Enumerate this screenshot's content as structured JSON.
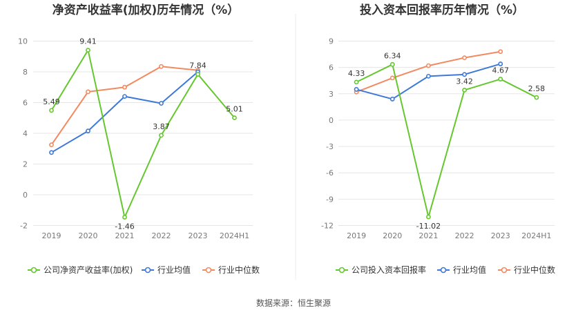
{
  "colors": {
    "company": "#64c72e",
    "average": "#3d78d8",
    "median": "#f2895f",
    "grid": "#e6e6e6",
    "divider": "#eeeeee"
  },
  "source_text": "数据来源：恒生聚源",
  "chart_data": [
    {
      "type": "line",
      "title": "净资产收益率(加权)历年情况（%）",
      "categories": [
        "2019",
        "2020",
        "2021",
        "2022",
        "2023",
        "2024H1"
      ],
      "ylim": [
        -2,
        10
      ],
      "yticks": [
        "-2",
        "0",
        "2",
        "4",
        "6",
        "8",
        "10"
      ],
      "grid": true,
      "legend_position": "bottom",
      "series": [
        {
          "name": "公司净资产收益率(加权)",
          "values": [
            5.49,
            9.41,
            -1.46,
            3.87,
            7.84,
            5.01
          ],
          "labels": [
            "5.49",
            "9.41",
            "-1.46",
            "3.87",
            "7.84",
            "5.01"
          ]
        },
        {
          "name": "行业均值",
          "values": [
            2.75,
            4.15,
            6.4,
            5.95,
            8.0,
            null
          ]
        },
        {
          "name": "行业中位数",
          "values": [
            3.25,
            6.7,
            7.0,
            8.35,
            8.1,
            null
          ]
        }
      ]
    },
    {
      "type": "line",
      "title": "投入资本回报率历年情况（%）",
      "categories": [
        "2019",
        "2020",
        "2021",
        "2022",
        "2023",
        "2024H1"
      ],
      "ylim": [
        -12,
        9
      ],
      "yticks": [
        "-12",
        "-9",
        "-6",
        "-3",
        "0",
        "3",
        "6",
        "9"
      ],
      "grid": true,
      "legend_position": "bottom",
      "series": [
        {
          "name": "公司投入资本回报率",
          "values": [
            4.33,
            6.34,
            -11.02,
            3.42,
            4.67,
            2.58
          ],
          "labels": [
            "4.33",
            "6.34",
            "-11.02",
            "3.42",
            "4.67",
            "2.58"
          ]
        },
        {
          "name": "行业均值",
          "values": [
            3.5,
            2.4,
            5.0,
            5.2,
            6.4,
            null
          ]
        },
        {
          "name": "行业中位数",
          "values": [
            3.2,
            4.8,
            6.2,
            7.1,
            7.8,
            null
          ]
        }
      ]
    }
  ]
}
